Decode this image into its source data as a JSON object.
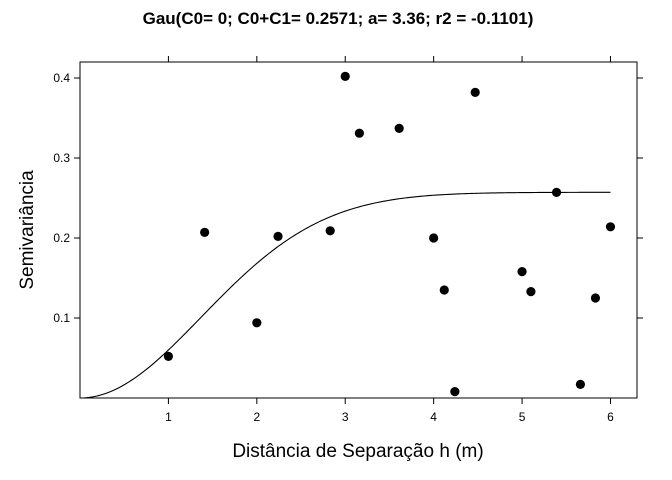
{
  "chart_data": {
    "type": "scatter",
    "title": "Gau(C0= 0; C0+C1= 0.2571; a= 3.36; r2 = -0.1101)",
    "xlabel": "Distância de Separação h (m)",
    "ylabel": "Semivariância",
    "xlim": [
      0,
      6.3
    ],
    "ylim": [
      0,
      0.42
    ],
    "x_ticks": [
      {
        "value": 1,
        "label": "1"
      },
      {
        "value": 2,
        "label": "2"
      },
      {
        "value": 3,
        "label": "3"
      },
      {
        "value": 4,
        "label": "4"
      },
      {
        "value": 5,
        "label": "5"
      },
      {
        "value": 6,
        "label": "6"
      }
    ],
    "y_ticks": [
      {
        "value": 0.1,
        "label": "0.1"
      },
      {
        "value": 0.2,
        "label": "0.2"
      },
      {
        "value": 0.3,
        "label": "0.3"
      },
      {
        "value": 0.4,
        "label": "0.4"
      }
    ],
    "grid": false,
    "points": [
      {
        "x": 1.0,
        "y": 0.052
      },
      {
        "x": 1.41,
        "y": 0.207
      },
      {
        "x": 2.0,
        "y": 0.094
      },
      {
        "x": 2.24,
        "y": 0.202
      },
      {
        "x": 2.83,
        "y": 0.209
      },
      {
        "x": 3.0,
        "y": 0.402
      },
      {
        "x": 3.16,
        "y": 0.331
      },
      {
        "x": 3.61,
        "y": 0.337
      },
      {
        "x": 4.0,
        "y": 0.2
      },
      {
        "x": 4.12,
        "y": 0.135
      },
      {
        "x": 4.24,
        "y": 0.008
      },
      {
        "x": 4.47,
        "y": 0.382
      },
      {
        "x": 5.0,
        "y": 0.158
      },
      {
        "x": 5.1,
        "y": 0.133
      },
      {
        "x": 5.39,
        "y": 0.257
      },
      {
        "x": 5.66,
        "y": 0.017
      },
      {
        "x": 5.83,
        "y": 0.125
      },
      {
        "x": 6.0,
        "y": 0.214
      }
    ],
    "model": {
      "type": "gaussian",
      "nugget": 0,
      "sill": 0.2571,
      "range": 3.36,
      "x_start": 0.05,
      "x_end": 6.0
    },
    "colors": {
      "points": "#000000",
      "curve": "#000000",
      "axes": "#000000"
    }
  }
}
